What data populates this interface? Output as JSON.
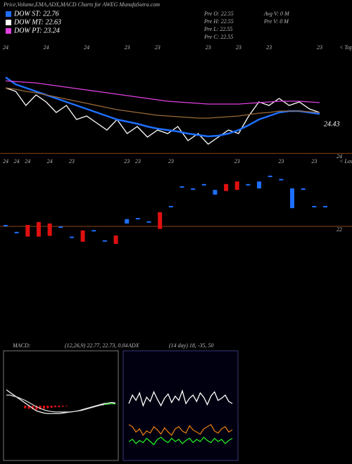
{
  "header": {
    "title": "Price,Volume,EMA,ADX,MACD Charts for AWEG MunafaSutra.com",
    "legend": [
      {
        "name": "DOW ST: 22.76",
        "color": "#1e6fff"
      },
      {
        "name": "DOW MT: 22.63",
        "color": "#ffffff"
      },
      {
        "name": "DOW PT: 23.24",
        "color": "#e040e0"
      }
    ],
    "info": [
      [
        "Pre  O: 22.55",
        "Avg V: 0  M"
      ],
      [
        "Pre  H: 22.55",
        "Pre  V: 0  M"
      ],
      [
        "Pre  L: 22.55"
      ],
      [
        "Pre  C: 22.55"
      ]
    ]
  },
  "chart_data": [
    {
      "type": "line",
      "annotation": "< Tops",
      "price_label": 24.43,
      "ylim": [
        24.0,
        25.6
      ],
      "categories": [
        "24",
        null,
        null,
        null,
        "24",
        null,
        null,
        null,
        "24",
        null,
        null,
        null,
        "23",
        null,
        null,
        "23",
        null,
        null,
        null,
        null,
        "23",
        null,
        null,
        "23",
        null,
        null,
        "23",
        null,
        null,
        null,
        null,
        "23"
      ],
      "series": [
        {
          "name": "Price",
          "color": "#ffffff",
          "values": [
            24.95,
            24.9,
            24.7,
            24.85,
            24.75,
            24.6,
            24.7,
            24.5,
            24.55,
            24.45,
            24.35,
            24.5,
            24.3,
            24.4,
            24.25,
            24.35,
            24.3,
            24.4,
            24.2,
            24.3,
            24.15,
            24.25,
            24.35,
            24.3,
            24.55,
            24.75,
            24.7,
            24.8,
            24.7,
            24.75,
            24.65,
            24.6
          ]
        },
        {
          "name": "Short EMA",
          "color": "#1e6fff",
          "values": [
            25.1,
            25.0,
            24.95,
            24.9,
            24.85,
            24.8,
            24.75,
            24.7,
            24.65,
            24.6,
            24.55,
            24.5,
            24.47,
            24.44,
            24.4,
            24.37,
            24.35,
            24.33,
            24.3,
            24.28,
            24.26,
            24.27,
            24.3,
            24.35,
            24.42,
            24.5,
            24.55,
            24.6,
            24.62,
            24.62,
            24.6,
            24.58
          ]
        },
        {
          "name": "Long EMA",
          "color": "#e040e0",
          "values": [
            25.05,
            25.04,
            25.03,
            25.02,
            25.0,
            24.98,
            24.96,
            24.94,
            24.92,
            24.9,
            24.88,
            24.86,
            24.84,
            24.82,
            24.8,
            24.78,
            24.76,
            24.75,
            24.74,
            24.73,
            24.72,
            24.72,
            24.72,
            24.72,
            24.73,
            24.74,
            24.75,
            24.76,
            24.76,
            24.76,
            24.75,
            24.74
          ]
        },
        {
          "name": "Mid EMA",
          "color": "#9a6a3a",
          "values": [
            24.95,
            24.93,
            24.9,
            24.88,
            24.85,
            24.82,
            24.79,
            24.76,
            24.73,
            24.7,
            24.67,
            24.64,
            24.62,
            24.6,
            24.58,
            24.56,
            24.55,
            24.54,
            24.53,
            24.52,
            24.52,
            24.53,
            24.54,
            24.55,
            24.57,
            24.59,
            24.6,
            24.62,
            24.62,
            24.62,
            24.61,
            24.6
          ]
        }
      ]
    },
    {
      "type": "candlestick",
      "annotation": "< Lows",
      "ylim": [
        21.5,
        24.1
      ],
      "yticks": [
        22,
        24
      ],
      "grid": true,
      "grid_color": "#8b4513",
      "up_color": "#1e6fff",
      "down_color": "#e01010",
      "categories": [
        "24",
        "24",
        "24",
        null,
        "24",
        null,
        "23",
        null,
        null,
        null,
        null,
        "23",
        "23",
        null,
        null,
        "23",
        null,
        null,
        null,
        null,
        null,
        "23",
        null,
        null,
        null,
        "23",
        null,
        null,
        "23",
        null
      ],
      "open": [
        22.04,
        21.85,
        22.04,
        22.12,
        22.08,
        22.0,
        21.72,
        21.89,
        21.9,
        21.62,
        21.75,
        22.08,
        22.23,
        22.14,
        22.39,
        22.56,
        23.1,
        23.04,
        23.16,
        22.87,
        23.16,
        23.23,
        23.16,
        23.04,
        23.39,
        23.3,
        22.5,
        23.04,
        22.56,
        22.56
      ],
      "high": [
        22.04,
        21.85,
        22.04,
        22.12,
        22.08,
        22.0,
        21.72,
        21.89,
        21.9,
        21.62,
        21.75,
        22.2,
        22.23,
        22.14,
        22.39,
        22.56,
        23.1,
        23.04,
        23.16,
        23.0,
        23.16,
        23.23,
        23.16,
        23.23,
        23.39,
        23.3,
        23.04,
        23.04,
        22.56,
        22.56
      ],
      "low": [
        22.04,
        21.85,
        21.72,
        21.72,
        21.74,
        22.0,
        21.72,
        21.58,
        21.9,
        21.62,
        21.52,
        22.08,
        22.23,
        22.14,
        21.93,
        22.56,
        23.1,
        23.04,
        23.16,
        22.87,
        22.97,
        23.0,
        23.16,
        23.04,
        23.39,
        23.3,
        22.5,
        23.04,
        22.56,
        22.56
      ],
      "close": [
        22.04,
        21.85,
        21.72,
        21.72,
        21.74,
        22.0,
        21.72,
        21.58,
        21.9,
        21.62,
        21.52,
        22.2,
        22.23,
        22.14,
        21.93,
        22.56,
        23.1,
        23.04,
        23.16,
        23.0,
        22.97,
        23.0,
        23.16,
        23.23,
        23.39,
        23.3,
        23.04,
        23.04,
        22.56,
        22.56
      ]
    },
    {
      "type": "macd",
      "title": "MACD:",
      "subtitle": "(12,26,9) 22.77, 22.73, 0.04",
      "ylim": [
        -1,
        1
      ],
      "series": [
        {
          "name": "MACD",
          "color": "#ffffff",
          "values": [
            0.3,
            0.25,
            0.2,
            0.15,
            0.1,
            0.05,
            0,
            -0.05,
            -0.1,
            -0.12,
            -0.14,
            -0.15,
            -0.15,
            -0.15,
            -0.15,
            -0.14,
            -0.13,
            -0.12,
            -0.11,
            -0.1,
            -0.08,
            -0.06,
            -0.04,
            -0.02,
            0,
            0.02,
            0.04,
            0.05,
            0.06,
            0.05
          ]
        },
        {
          "name": "Signal",
          "color": "#dddddd",
          "values": [
            0.2,
            0.2,
            0.18,
            0.16,
            0.13,
            0.1,
            0.06,
            0.02,
            -0.02,
            -0.05,
            -0.08,
            -0.1,
            -0.11,
            -0.12,
            -0.12,
            -0.12,
            -0.12,
            -0.12,
            -0.11,
            -0.1,
            -0.09,
            -0.07,
            -0.05,
            -0.03,
            -0.01,
            0.01,
            0.02,
            0.03,
            0.04,
            0.04
          ]
        },
        {
          "name": "Trend",
          "color": "#22dd22",
          "values": [
            null,
            null,
            null,
            null,
            null,
            null,
            null,
            null,
            null,
            null,
            null,
            null,
            null,
            null,
            null,
            null,
            null,
            null,
            null,
            null,
            null,
            null,
            null,
            null,
            null,
            null,
            0.02,
            0.04,
            0.04,
            0.03
          ]
        }
      ],
      "histogram": {
        "color": "#e01010",
        "values": [
          0,
          0,
          0,
          0,
          0,
          -0.05,
          -0.06,
          -0.07,
          -0.08,
          -0.07,
          -0.06,
          -0.05,
          -0.04,
          -0.03,
          -0.03,
          -0.02,
          -0.01,
          0,
          0,
          0,
          0,
          0,
          0,
          0,
          0,
          0,
          0,
          0,
          0,
          0
        ]
      }
    },
    {
      "type": "line",
      "title": "ADX",
      "subtitle": "(14  day)  18,  -35,  50",
      "ylim": [
        0,
        100
      ],
      "series": [
        {
          "name": "ADX",
          "color": "#ffffff",
          "values": [
            52,
            60,
            55,
            62,
            50,
            58,
            54,
            63,
            56,
            50,
            57,
            61,
            53,
            59,
            55,
            64,
            52,
            57,
            60,
            54,
            62,
            58,
            51,
            59,
            63,
            55,
            57,
            60,
            54,
            52
          ]
        },
        {
          "name": "DI-",
          "color": "#e07a10",
          "values": [
            32,
            30,
            25,
            28,
            22,
            26,
            24,
            30,
            27,
            23,
            29,
            25,
            22,
            28,
            30,
            26,
            24,
            31,
            27,
            25,
            23,
            28,
            30,
            32,
            26,
            24,
            28,
            30,
            25,
            27
          ]
        },
        {
          "name": "DI+",
          "color": "#22ee22",
          "values": [
            16,
            18,
            14,
            17,
            15,
            19,
            16,
            13,
            18,
            20,
            17,
            15,
            19,
            16,
            18,
            14,
            17,
            19,
            15,
            18,
            16,
            20,
            17,
            15,
            19,
            16,
            18,
            14,
            17,
            19
          ]
        }
      ]
    }
  ]
}
